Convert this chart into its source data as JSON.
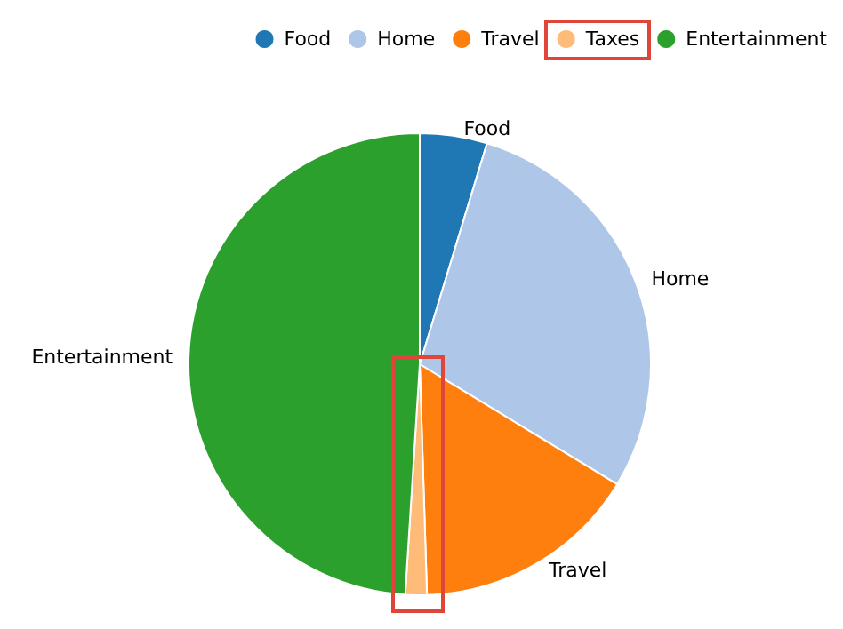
{
  "chart_data": {
    "type": "pie",
    "categories": [
      "Food",
      "Home",
      "Travel",
      "Taxes",
      "Entertainment"
    ],
    "values": [
      4.7,
      29,
      15.8,
      1.5,
      49
    ],
    "colors": [
      "#1f77b4",
      "#aec7e8",
      "#ff7f0e",
      "#ffbb78",
      "#2ca02c"
    ],
    "legend": "top right"
  }
}
